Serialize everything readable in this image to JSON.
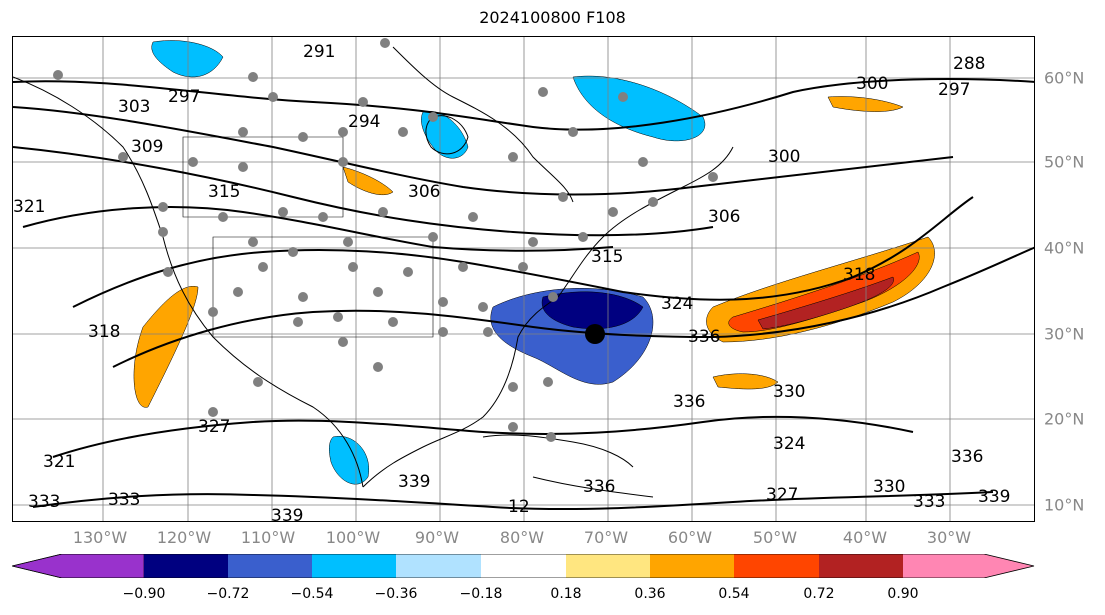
{
  "title": "2024100800 F108",
  "map": {
    "lon_labels": [
      "130°W",
      "120°W",
      "110°W",
      "100°W",
      "90°W",
      "80°W",
      "70°W",
      "60°W",
      "50°W",
      "40°W",
      "30°W"
    ],
    "lat_labels": [
      "60°N",
      "50°N",
      "40°N",
      "30°N",
      "20°N",
      "10°N"
    ],
    "contour_labels": [
      "291",
      "288",
      "297",
      "300",
      "303",
      "297",
      "294",
      "309",
      "306",
      "300",
      "315",
      "321",
      "306",
      "315",
      "324",
      "318",
      "318",
      "336",
      "336",
      "330",
      "327",
      "324",
      "321",
      "339",
      "327",
      "330",
      "333",
      "336",
      "339",
      "333",
      "339",
      "12",
      "333",
      "336"
    ],
    "colors": {
      "land_border": "#000000",
      "contour": "#000000",
      "grid": "#808080",
      "station": "#808080"
    }
  },
  "colorbar": {
    "ticks": [
      "−0.90",
      "−0.72",
      "−0.54",
      "−0.36",
      "−0.18",
      "0.18",
      "0.36",
      "0.54",
      "0.72",
      "0.90"
    ],
    "colors": [
      "#9932cc",
      "#000080",
      "#3a5fcd",
      "#00bfff",
      "#b0e2ff",
      "#ffffff",
      "#ffe680",
      "#ffa500",
      "#ff4500",
      "#b22222",
      "#ff86b3"
    ]
  }
}
